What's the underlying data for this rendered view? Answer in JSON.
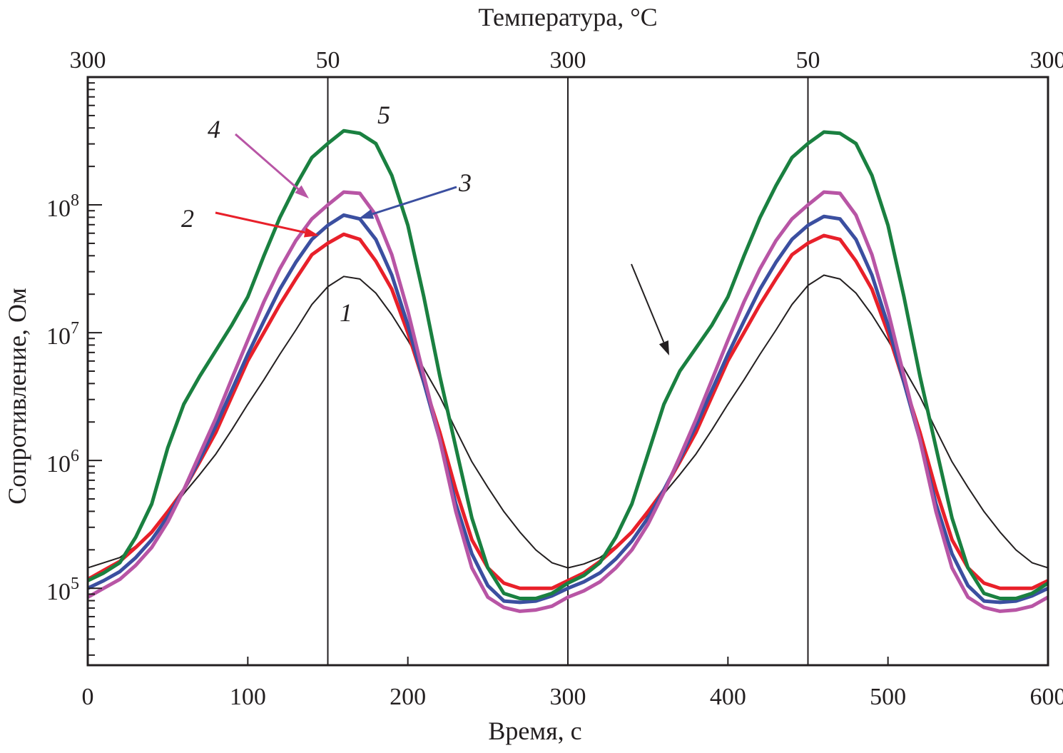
{
  "chart_data": {
    "type": "line",
    "title": "",
    "xlabel": "Время, с",
    "ylabel": "Сопротивление, Ом",
    "top_xlabel": "Температура, °C",
    "xlim": [
      0,
      600
    ],
    "ylim": [
      25000,
      1000000000
    ],
    "yscale": "log",
    "x_ticks": [
      "0",
      "100",
      "200",
      "300",
      "400",
      "500",
      "600"
    ],
    "x_tick_values": [
      0,
      100,
      200,
      300,
      400,
      500,
      600
    ],
    "y_ticks": [
      {
        "base": "10",
        "exp": "5",
        "value": 5
      },
      {
        "base": "10",
        "exp": "6",
        "value": 6
      },
      {
        "base": "10",
        "exp": "7",
        "value": 7
      },
      {
        "base": "10",
        "exp": "8",
        "value": 8
      }
    ],
    "top_ticks": [
      {
        "label": "300",
        "time": 0
      },
      {
        "label": "50",
        "time": 150
      },
      {
        "label": "300",
        "time": 300
      },
      {
        "label": "50",
        "time": 450
      },
      {
        "label": "300",
        "time": 600
      }
    ],
    "vertical_lines_at_time": [
      150,
      300,
      450
    ],
    "x": [
      0,
      10,
      20,
      30,
      40,
      50,
      60,
      70,
      80,
      90,
      100,
      110,
      120,
      130,
      140,
      150,
      160,
      170,
      180,
      190,
      200,
      210,
      220,
      230,
      240,
      250,
      260,
      270,
      280,
      290,
      300,
      310,
      320,
      330,
      340,
      350,
      360,
      370,
      380,
      390,
      400,
      410,
      420,
      430,
      440,
      450,
      460,
      470,
      480,
      490,
      500,
      510,
      520,
      530,
      540,
      550,
      560,
      570,
      580,
      590,
      600
    ],
    "series_log10": [
      {
        "name": "1",
        "color": "#231f20",
        "values": [
          5.16,
          5.2,
          5.24,
          5.33,
          5.44,
          5.58,
          5.74,
          5.89,
          6.05,
          6.24,
          6.44,
          6.63,
          6.83,
          7.02,
          7.22,
          7.36,
          7.44,
          7.42,
          7.31,
          7.14,
          6.94,
          6.72,
          6.5,
          6.24,
          5.99,
          5.79,
          5.6,
          5.44,
          5.3,
          5.2,
          5.16,
          5.19,
          5.24,
          5.33,
          5.44,
          5.58,
          5.74,
          5.89,
          6.05,
          6.24,
          6.44,
          6.63,
          6.83,
          7.02,
          7.22,
          7.37,
          7.45,
          7.42,
          7.31,
          7.14,
          6.94,
          6.72,
          6.5,
          6.24,
          5.99,
          5.79,
          5.6,
          5.44,
          5.3,
          5.2,
          5.16
        ]
      },
      {
        "name": "2",
        "color": "#e8202a",
        "values": [
          5.07,
          5.14,
          5.21,
          5.32,
          5.44,
          5.6,
          5.77,
          5.99,
          6.22,
          6.5,
          6.78,
          7.0,
          7.22,
          7.42,
          7.61,
          7.7,
          7.77,
          7.73,
          7.56,
          7.34,
          7.0,
          6.61,
          6.22,
          5.77,
          5.38,
          5.16,
          5.04,
          5.0,
          5.0,
          5.0,
          5.06,
          5.12,
          5.21,
          5.32,
          5.44,
          5.6,
          5.77,
          5.99,
          6.22,
          6.5,
          6.78,
          7.0,
          7.22,
          7.42,
          7.61,
          7.7,
          7.76,
          7.73,
          7.56,
          7.34,
          7.0,
          6.61,
          6.22,
          5.77,
          5.38,
          5.16,
          5.04,
          5.0,
          5.0,
          5.0,
          5.06
        ]
      },
      {
        "name": "3",
        "color": "#3b4fa0",
        "values": [
          5.0,
          5.06,
          5.13,
          5.24,
          5.38,
          5.56,
          5.77,
          6.01,
          6.27,
          6.55,
          6.83,
          7.09,
          7.34,
          7.55,
          7.73,
          7.84,
          7.92,
          7.89,
          7.73,
          7.45,
          7.06,
          6.61,
          6.16,
          5.66,
          5.27,
          5.02,
          4.9,
          4.89,
          4.9,
          4.94,
          5.0,
          5.05,
          5.12,
          5.23,
          5.37,
          5.55,
          5.77,
          6.01,
          6.27,
          6.55,
          6.83,
          7.09,
          7.34,
          7.55,
          7.73,
          7.84,
          7.91,
          7.89,
          7.73,
          7.45,
          7.06,
          6.61,
          6.16,
          5.66,
          5.27,
          5.02,
          4.9,
          4.89,
          4.9,
          4.94,
          5.0
        ]
      },
      {
        "name": "4",
        "color": "#b855a5",
        "values": [
          4.93,
          5.0,
          5.07,
          5.18,
          5.32,
          5.52,
          5.77,
          6.05,
          6.33,
          6.64,
          6.94,
          7.24,
          7.5,
          7.72,
          7.89,
          8.0,
          8.1,
          8.09,
          7.92,
          7.61,
          7.17,
          6.66,
          6.16,
          5.6,
          5.16,
          4.93,
          4.85,
          4.82,
          4.83,
          4.86,
          4.93,
          4.98,
          5.05,
          5.16,
          5.3,
          5.5,
          5.75,
          6.03,
          6.32,
          6.63,
          6.94,
          7.24,
          7.5,
          7.72,
          7.89,
          8.0,
          8.1,
          8.09,
          7.92,
          7.61,
          7.17,
          6.66,
          6.16,
          5.6,
          5.16,
          4.93,
          4.85,
          4.82,
          4.83,
          4.86,
          4.93
        ]
      },
      {
        "name": "5",
        "color": "#1a8040",
        "values": [
          5.06,
          5.12,
          5.2,
          5.4,
          5.66,
          6.1,
          6.44,
          6.66,
          6.86,
          7.06,
          7.28,
          7.6,
          7.9,
          8.15,
          8.37,
          8.48,
          8.58,
          8.56,
          8.48,
          8.23,
          7.84,
          7.28,
          6.66,
          6.1,
          5.55,
          5.16,
          4.96,
          4.92,
          4.92,
          4.96,
          5.04,
          5.1,
          5.2,
          5.4,
          5.66,
          6.05,
          6.44,
          6.7,
          6.88,
          7.06,
          7.28,
          7.6,
          7.9,
          8.15,
          8.37,
          8.48,
          8.57,
          8.56,
          8.48,
          8.23,
          7.84,
          7.28,
          6.66,
          6.1,
          5.55,
          5.16,
          4.96,
          4.92,
          4.92,
          4.96,
          5.04
        ]
      }
    ],
    "annotations": [
      "1",
      "2",
      "3",
      "4",
      "5"
    ]
  }
}
